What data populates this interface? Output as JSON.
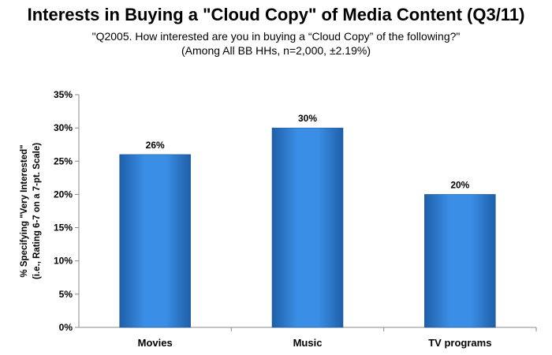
{
  "chart_data": {
    "type": "bar",
    "title": "Interests in Buying a \"Cloud Copy\" of Media Content (Q3/11)",
    "subtitle_lines": [
      "\"Q2005. How interested are you in buying a “Cloud Copy” of the following?\"",
      "(Among All BB HHs, n=2,000, ±2.19%)"
    ],
    "ylabel_lines": [
      "% Specifying \"Very Interested\"",
      "(i.e., Rating 6-7 on a 7-pt. Scale)"
    ],
    "xlabel": "",
    "categories": [
      "Movies",
      "Music",
      "TV programs"
    ],
    "values": [
      26,
      30,
      20
    ],
    "data_labels": [
      "26%",
      "30%",
      "20%"
    ],
    "ylim": [
      0,
      35
    ],
    "yticks": [
      0,
      5,
      10,
      15,
      20,
      25,
      30,
      35
    ],
    "ytick_labels": [
      "0%",
      "5%",
      "10%",
      "15%",
      "20%",
      "25%",
      "30%",
      "35%"
    ],
    "grid": false,
    "legend": "none",
    "bar_color": "#2E86DE"
  }
}
